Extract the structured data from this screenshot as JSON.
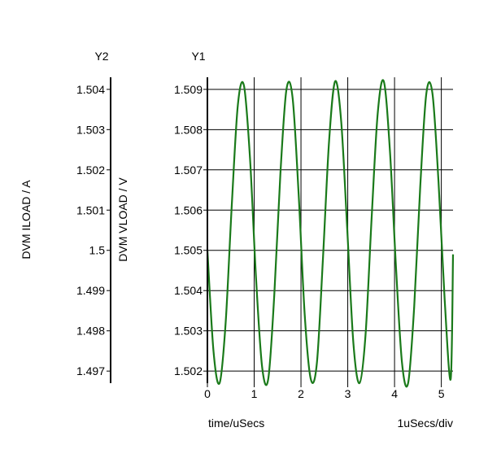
{
  "chart_data": {
    "type": "line",
    "axis_titles": {
      "y2": "Y2",
      "y1": "Y1"
    },
    "xlabel": "time/uSecs",
    "x_scale_label": "1uSecs/div",
    "y1label": "DVM VLOAD / V",
    "y2label": "DVM ILOAD / A",
    "xlim": [
      0,
      5.25
    ],
    "y1lim": [
      1.5017,
      1.5093
    ],
    "y2lim": [
      1.4967,
      1.5043
    ],
    "x_ticks": [
      {
        "value": 0,
        "label": "0"
      },
      {
        "value": 1,
        "label": "1"
      },
      {
        "value": 2,
        "label": "2"
      },
      {
        "value": 3,
        "label": "3"
      },
      {
        "value": 4,
        "label": "4"
      },
      {
        "value": 5,
        "label": "5"
      }
    ],
    "y1_ticks": [
      {
        "value": 1.509,
        "label": "1.509"
      },
      {
        "value": 1.508,
        "label": "1.508"
      },
      {
        "value": 1.507,
        "label": "1.507"
      },
      {
        "value": 1.506,
        "label": "1.506"
      },
      {
        "value": 1.505,
        "label": "1.505"
      },
      {
        "value": 1.504,
        "label": "1.504"
      },
      {
        "value": 1.503,
        "label": "1.503"
      },
      {
        "value": 1.502,
        "label": "1.502"
      }
    ],
    "y2_ticks": [
      {
        "value": 1.504,
        "label": "1.504"
      },
      {
        "value": 1.503,
        "label": "1.503"
      },
      {
        "value": 1.502,
        "label": "1.502"
      },
      {
        "value": 1.501,
        "label": "1.501"
      },
      {
        "value": 1.5,
        "label": "1.5"
      },
      {
        "value": 1.499,
        "label": "1.499"
      },
      {
        "value": 1.498,
        "label": "1.498"
      },
      {
        "value": 1.497,
        "label": "1.497"
      }
    ],
    "grid": true,
    "series": [
      {
        "axis": "y1",
        "color": "#1a7a1a",
        "x": [
          0,
          0.13,
          0.26,
          0.39,
          0.52,
          0.65,
          0.78,
          0.91,
          1.04,
          1.17,
          1.3,
          1.43,
          1.56,
          1.69,
          1.82,
          1.95,
          2.08,
          2.21,
          2.34,
          2.47,
          2.6,
          2.73,
          2.86,
          2.99,
          3.12,
          3.25,
          3.38,
          3.51,
          3.64,
          3.77,
          3.9,
          4.03,
          4.16,
          4.29,
          4.42,
          4.55,
          4.68,
          4.81,
          4.94,
          5.07,
          5.2,
          5.25
        ],
        "y": [
          1.505,
          1.5025,
          1.5017,
          1.5032,
          1.5061,
          1.5086,
          1.5091,
          1.5073,
          1.5043,
          1.5021,
          1.5018,
          1.5039,
          1.5069,
          1.509,
          1.5088,
          1.5064,
          1.5034,
          1.5018,
          1.5022,
          1.5048,
          1.5077,
          1.5092,
          1.5082,
          1.5055,
          1.5027,
          1.5017,
          1.5029,
          1.5058,
          1.5084,
          1.5092,
          1.5075,
          1.5046,
          1.5022,
          1.5017,
          1.5036,
          1.5066,
          1.5089,
          1.5089,
          1.5067,
          1.5038,
          1.5018,
          1.5049
        ]
      }
    ]
  }
}
